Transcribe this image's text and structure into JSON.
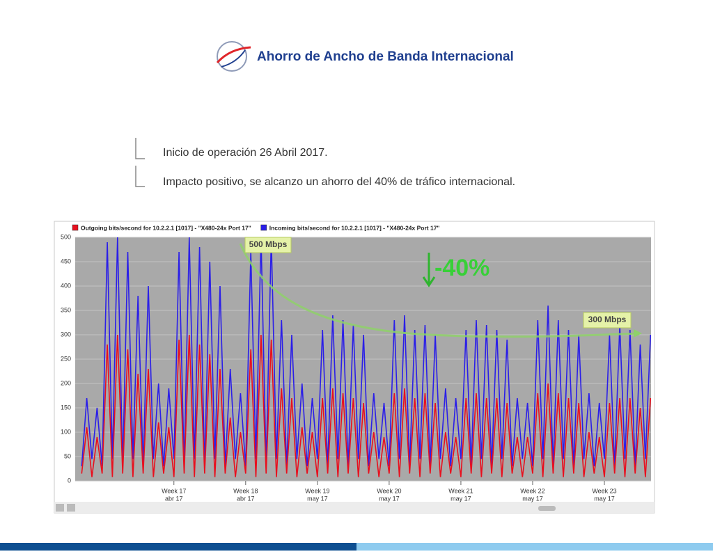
{
  "header": {
    "title": "Ahorro de Ancho de Banda Internacional"
  },
  "bullets": [
    "Inicio de operación 26 Abril 2017.",
    "Impacto positivo, se alcanzo un ahorro del 40% de tráfico internacional."
  ],
  "chart_data": {
    "type": "line",
    "annotations": [
      "500 Mbps",
      "300 Mbps",
      "-40%"
    ],
    "x": [
      -9,
      -8.5,
      -8,
      -7.5,
      -7,
      -6.5,
      -6,
      -5.5,
      -5,
      -4.5,
      -4,
      -3.5,
      -3,
      -2.5,
      -2,
      -1.5,
      -1,
      -0.5,
      0,
      0.5,
      1,
      1.5,
      2,
      2.5,
      3,
      3.5,
      4,
      4.5,
      5,
      5.5,
      6,
      6.5,
      7,
      7.5,
      8,
      8.5,
      9,
      9.5,
      10,
      10.5,
      11,
      11.5,
      12,
      12.5,
      13,
      13.5,
      14,
      14.5,
      15,
      15.5,
      16,
      16.5,
      17,
      17.5,
      18,
      18.5,
      19,
      19.5,
      20,
      20.5,
      21,
      21.5,
      22,
      22.5,
      23,
      23.5,
      24,
      24.5,
      25,
      25.5,
      26,
      26.5,
      27,
      27.5,
      28,
      28.5,
      29,
      29.5,
      30,
      30.5,
      31,
      31.5,
      32,
      32.5,
      33,
      33.5,
      34,
      34.5,
      35,
      35.5,
      36,
      36.5,
      37,
      37.5,
      38,
      38.5,
      39,
      39.5,
      40,
      40.5,
      41,
      41.5,
      42,
      42.5,
      43,
      43.5,
      44,
      44.5,
      45,
      45.5,
      46,
      46.5
    ],
    "series": [
      {
        "name": "Incoming bits/second for 10.2.2.1 [1017] - \"X480-24x Port 17\"",
        "color": "#2b1fe8",
        "values": [
          30,
          170,
          45,
          150,
          30,
          490,
          45,
          500,
          30,
          470,
          45,
          380,
          30,
          400,
          45,
          200,
          30,
          190,
          45,
          470,
          30,
          500,
          45,
          480,
          30,
          450,
          45,
          400,
          30,
          230,
          45,
          180,
          30,
          470,
          45,
          500,
          30,
          500,
          45,
          330,
          30,
          300,
          45,
          200,
          30,
          170,
          45,
          310,
          30,
          340,
          45,
          330,
          30,
          320,
          45,
          300,
          30,
          180,
          45,
          160,
          30,
          330,
          45,
          340,
          30,
          310,
          45,
          320,
          30,
          300,
          45,
          190,
          30,
          170,
          45,
          310,
          30,
          330,
          45,
          320,
          30,
          310,
          45,
          290,
          30,
          170,
          45,
          160,
          30,
          330,
          45,
          360,
          30,
          330,
          45,
          310,
          30,
          300,
          45,
          180,
          30,
          160,
          45,
          300,
          30,
          320,
          45,
          310,
          30,
          280,
          45,
          300
        ]
      },
      {
        "name": "Outgoing bits/second for 10.2.2.1 [1017] - \"X480-24x Port 17\"",
        "color": "#e8101e",
        "values": [
          15,
          110,
          8,
          90,
          15,
          280,
          8,
          300,
          15,
          270,
          8,
          220,
          15,
          230,
          8,
          120,
          15,
          110,
          8,
          290,
          15,
          300,
          8,
          280,
          15,
          260,
          8,
          230,
          15,
          130,
          8,
          100,
          15,
          270,
          8,
          300,
          15,
          290,
          8,
          190,
          15,
          170,
          8,
          110,
          15,
          100,
          8,
          170,
          15,
          190,
          8,
          180,
          15,
          170,
          8,
          160,
          15,
          100,
          8,
          90,
          15,
          180,
          8,
          190,
          15,
          170,
          8,
          180,
          15,
          160,
          8,
          100,
          15,
          90,
          8,
          170,
          15,
          180,
          8,
          170,
          15,
          170,
          8,
          160,
          15,
          90,
          8,
          90,
          15,
          180,
          8,
          200,
          15,
          180,
          8,
          170,
          15,
          160,
          8,
          100,
          15,
          90,
          8,
          160,
          15,
          170,
          8,
          170,
          15,
          150,
          8,
          170
        ]
      }
    ],
    "legend_order": [
      1,
      0
    ],
    "xlim": [
      -9.63,
      46.55
    ],
    "xticks": [
      {
        "value": 0,
        "label": "Week 17"
      },
      {
        "value": 7,
        "label": "Week 18"
      },
      {
        "value": 14,
        "label": "Week 19"
      },
      {
        "value": 21,
        "label": "Week 20"
      },
      {
        "value": 28,
        "label": "Week 21"
      },
      {
        "value": 35,
        "label": "Week 22"
      },
      {
        "value": 42,
        "label": "Week 23"
      }
    ],
    "xtick_sublabels": [
      "abr 17",
      "abr 17",
      "may 17",
      "may 17",
      "may 17",
      "may 17",
      "may 17"
    ],
    "ylim": [
      0,
      500
    ],
    "yticks": [
      0,
      50,
      100,
      150,
      200,
      250,
      300,
      350,
      400,
      450,
      500
    ],
    "grid": true
  }
}
